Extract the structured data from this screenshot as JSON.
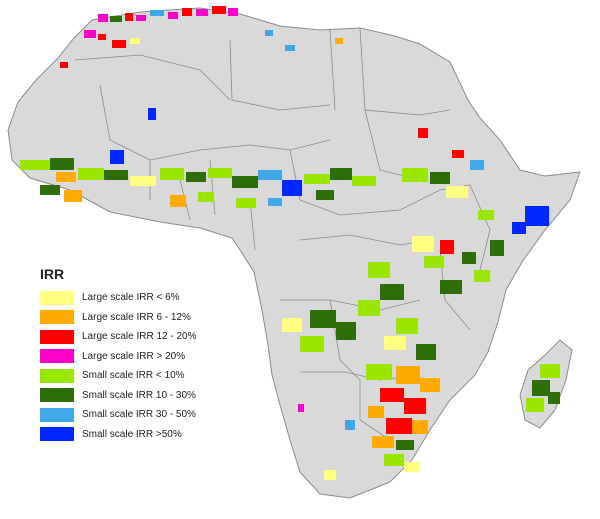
{
  "map": {
    "land_color": "#d9d9d9",
    "border_color": "#8c8c8c",
    "background": "#ffffff"
  },
  "legend": {
    "title": "IRR",
    "items": [
      {
        "label": "Large scale IRR < 6%",
        "color": "#ffff80"
      },
      {
        "label": "Large scale IRR 6 - 12%",
        "color": "#ffaa00"
      },
      {
        "label": "Large scale IRR 12 - 20%",
        "color": "#ff0000"
      },
      {
        "label": "Large scale IRR > 20%",
        "color": "#ff00c8"
      },
      {
        "label": "Small scale IRR < 10%",
        "color": "#99e600"
      },
      {
        "label": "Small scale IRR 10 - 30%",
        "color": "#2d6e0a"
      },
      {
        "label": "Small scale IRR 30 - 50%",
        "color": "#40a8e8"
      },
      {
        "label": "Small scale IRR >50%",
        "color": "#0028ff"
      }
    ]
  }
}
